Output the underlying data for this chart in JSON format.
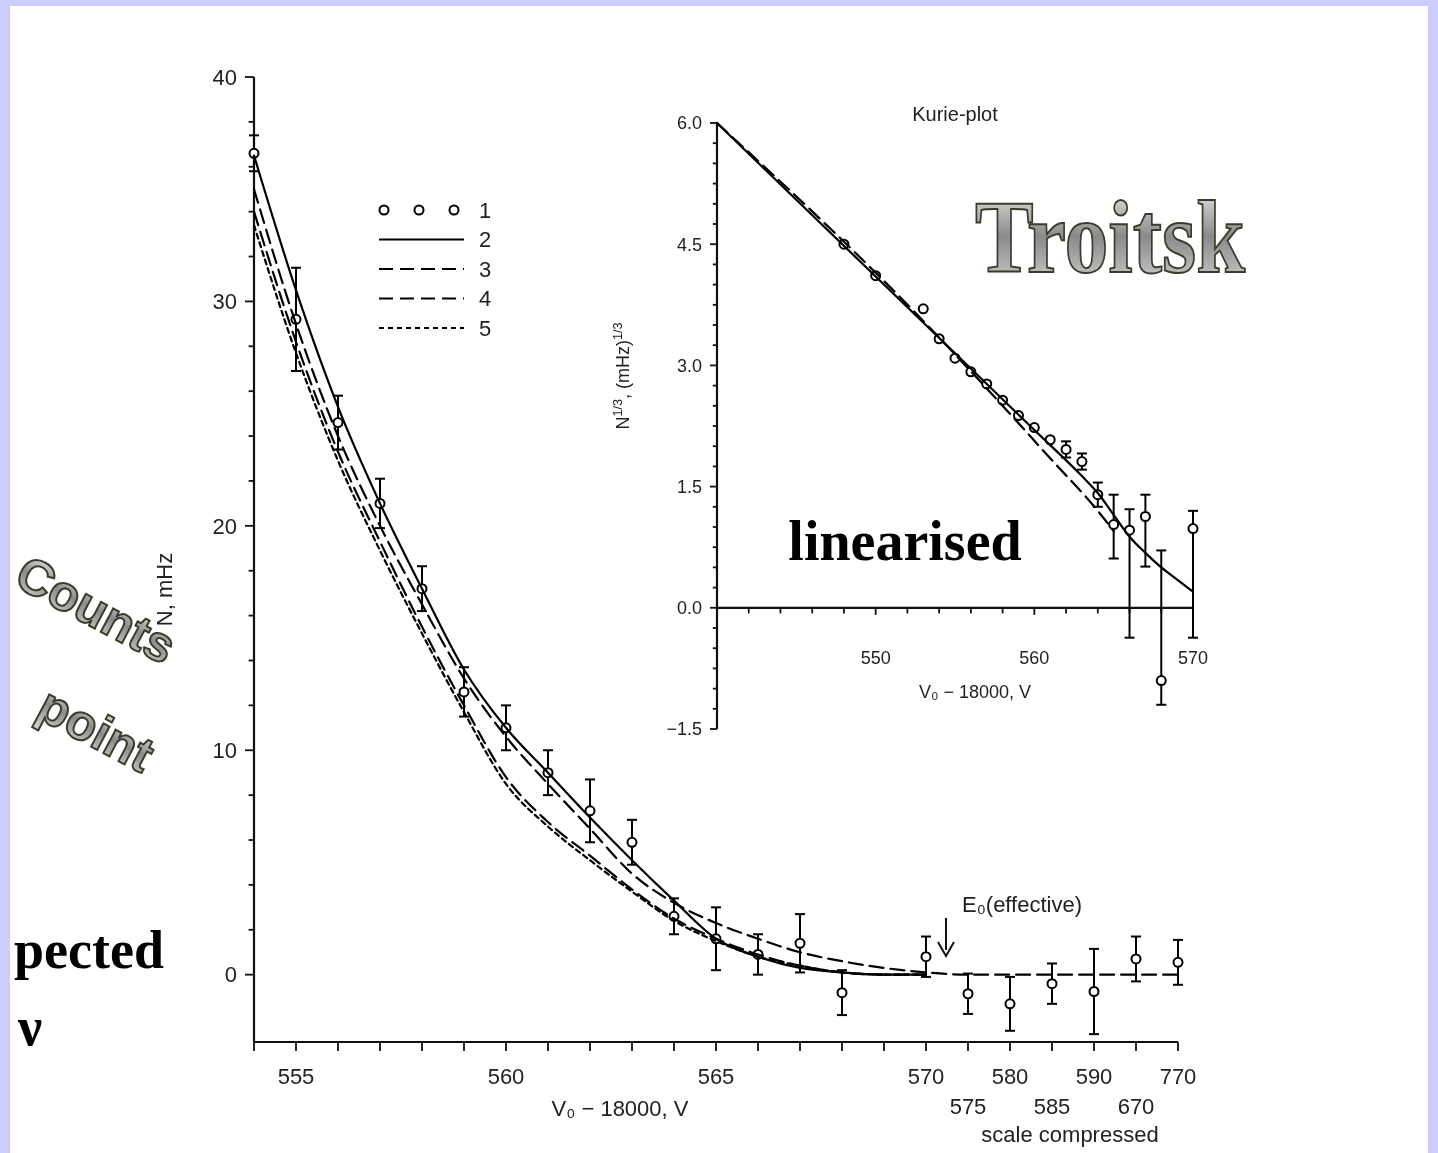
{
  "chart_data": [
    {
      "type": "line",
      "ylabel": "N, mHz",
      "xlabel": "V₀ − 18000, V",
      "categories": [
        null,
        "555",
        null,
        null,
        null,
        null,
        "560",
        null,
        null,
        null,
        null,
        "565",
        null,
        null,
        null,
        null,
        "570",
        "575",
        "580",
        "585",
        "590",
        "670",
        "770"
      ],
      "ylim": [
        -3,
        40
      ],
      "yticks": [
        0,
        {
          "value": 2,
          "label": null
        },
        {
          "value": 4,
          "label": null
        },
        {
          "value": 6,
          "label": null
        },
        {
          "value": 8,
          "label": null
        },
        10,
        {
          "value": 12,
          "label": null
        },
        {
          "value": 14,
          "label": null
        },
        {
          "value": 16,
          "label": null
        },
        {
          "value": 18,
          "label": null
        },
        20,
        {
          "value": 22,
          "label": null
        },
        {
          "value": 24,
          "label": null
        },
        {
          "value": 26,
          "label": null
        },
        {
          "value": 28,
          "label": null
        },
        30,
        {
          "value": 32,
          "label": null
        },
        {
          "value": 34,
          "label": null
        },
        {
          "value": 36,
          "label": null
        },
        {
          "value": 38,
          "label": null
        },
        40
      ],
      "legend": "top left",
      "series": [
        {
          "name": "1",
          "type": "scatter",
          "marker": "circle",
          "color": "#000000",
          "values": [
            36.6,
            29.2,
            24.6,
            21.0,
            17.2,
            12.6,
            11.0,
            9.0,
            7.3,
            5.9,
            2.6,
            1.6,
            0.9,
            1.4,
            -0.8,
            null,
            0.8,
            -0.85,
            -1.3,
            -0.4,
            -0.75,
            0.7,
            0.55
          ],
          "errors": [
            0.8,
            2.3,
            1.2,
            1.1,
            1.0,
            1.1,
            1.0,
            1.0,
            1.4,
            1.0,
            0.8,
            1.4,
            0.9,
            1.3,
            1.0,
            null,
            0.9,
            0.9,
            1.2,
            0.9,
            1.9,
            1.0,
            1.0
          ]
        },
        {
          "name": "2",
          "line_style": "solid",
          "color": "#000000",
          "values": [
            36.5,
            30.5,
            25.3,
            21.0,
            17.2,
            13.6,
            11.0,
            9.0,
            7.0,
            5.1,
            3.3,
            1.6,
            0.8,
            0.3,
            0.1,
            0.0,
            0.0,
            null,
            null,
            null,
            null,
            null,
            null
          ]
        },
        {
          "name": "3",
          "line_style": "dashed",
          "color": "#000000",
          "values": [
            35.0,
            29.0,
            24.0,
            20.0,
            16.5,
            13.2,
            10.6,
            8.5,
            6.5,
            4.5,
            3.2,
            2.3,
            1.6,
            1.0,
            0.6,
            0.3,
            0.1,
            0,
            0,
            0,
            0,
            0,
            0
          ]
        },
        {
          "name": "4",
          "line_style": "dashed",
          "color": "#000000",
          "values": [
            34.0,
            28.2,
            23.3,
            19.3,
            15.5,
            12.0,
            8.8,
            6.8,
            5.3,
            3.8,
            2.5,
            1.6,
            0.9,
            0.4,
            0.1,
            0.0,
            0.0,
            null,
            null,
            null,
            null,
            null,
            null
          ]
        },
        {
          "name": "5",
          "line_style": "dotted",
          "color": "#000000",
          "values": [
            33.4,
            27.7,
            22.9,
            18.9,
            15.2,
            11.7,
            8.5,
            6.6,
            5.1,
            3.7,
            2.4,
            1.5,
            0.8,
            0.4,
            0.1,
            0.0,
            0.0,
            null,
            null,
            null,
            null,
            null,
            null
          ]
        }
      ],
      "annotations": [
        "E₀(effective)",
        "scale compressed",
        "Counts",
        "point",
        "pected",
        "ν"
      ]
    },
    {
      "type": "line",
      "title": "Kurie-plot",
      "ylabel": "N$^{1/3}$, (mHz)$^{1/3}$",
      "xlabel": "V₀ − 18000, V",
      "xlim": [
        540,
        570
      ],
      "xticks": [
        {
          "value": 542,
          "label": null
        },
        {
          "value": 544,
          "label": null
        },
        {
          "value": 546,
          "label": null
        },
        {
          "value": 548,
          "label": null
        },
        550,
        {
          "value": 552,
          "label": null
        },
        {
          "value": 554,
          "label": null
        },
        {
          "value": 556,
          "label": null
        },
        {
          "value": 558,
          "label": null
        },
        560,
        {
          "value": 562,
          "label": null
        },
        {
          "value": 564,
          "label": null
        },
        {
          "value": 566,
          "label": null
        },
        {
          "value": 568,
          "label": null
        },
        570
      ],
      "ylim": [
        -1.5,
        6.0
      ],
      "yticks": [
        {
          "value": -1.5,
          "label": "−1.5"
        },
        {
          "value": -1.25,
          "label": null
        },
        {
          "value": -1.0,
          "label": null
        },
        {
          "value": -0.75,
          "label": null
        },
        {
          "value": -0.5,
          "label": null
        },
        {
          "value": -0.25,
          "label": null
        },
        {
          "value": 0,
          "label": "0.0"
        },
        {
          "value": 0.25,
          "label": null
        },
        {
          "value": 0.5,
          "label": null
        },
        {
          "value": 0.75,
          "label": null
        },
        {
          "value": 1.0,
          "label": null
        },
        {
          "value": 1.25,
          "label": null
        },
        {
          "value": 1.5,
          "label": "1.5"
        },
        {
          "value": 1.75,
          "label": null
        },
        {
          "value": 2.0,
          "label": null
        },
        {
          "value": 2.25,
          "label": null
        },
        {
          "value": 2.5,
          "label": null
        },
        {
          "value": 2.75,
          "label": null
        },
        {
          "value": 3.0,
          "label": "3.0"
        },
        {
          "value": 3.25,
          "label": null
        },
        {
          "value": 3.5,
          "label": null
        },
        {
          "value": 3.75,
          "label": null
        },
        {
          "value": 4.0,
          "label": null
        },
        {
          "value": 4.25,
          "label": null
        },
        {
          "value": 4.5,
          "label": "4.5"
        },
        {
          "value": 4.75,
          "label": null
        },
        {
          "value": 5.0,
          "label": null
        },
        {
          "value": 5.25,
          "label": null
        },
        {
          "value": 5.5,
          "label": null
        },
        {
          "value": 5.75,
          "label": null
        },
        {
          "value": 6.0,
          "label": "6.0"
        }
      ],
      "series": [
        {
          "type": "scatter",
          "marker": "circle",
          "color": "#000000",
          "x": [
            548,
            550,
            553,
            554,
            555,
            556,
            557,
            558,
            559,
            560,
            561,
            562,
            563,
            564,
            565,
            566,
            567,
            568,
            570
          ],
          "values": [
            4.5,
            4.11,
            3.7,
            3.33,
            3.09,
            2.92,
            2.77,
            2.57,
            2.38,
            2.23,
            2.08,
            1.96,
            1.81,
            1.4,
            1.03,
            0.96,
            1.13,
            -0.9,
            0.98
          ],
          "errors": [
            null,
            null,
            null,
            null,
            null,
            null,
            null,
            null,
            null,
            null,
            null,
            0.1,
            0.1,
            0.15,
            [
              0.61,
              1.4
            ],
            [
              -0.37,
              1.22
            ],
            [
              0.51,
              1.4
            ],
            [
              -1.2,
              0.71
            ],
            [
              -0.37,
              1.2
            ]
          ]
        },
        {
          "line_style": "solid",
          "color": "#000000",
          "x": [
            540,
            550,
            560,
            563,
            564,
            565,
            566,
            567,
            568,
            569,
            570
          ],
          "values": [
            6.0,
            4.1,
            2.2,
            1.63,
            1.42,
            1.15,
            0.88,
            0.68,
            0.5,
            0.35,
            0.2
          ]
        },
        {
          "line_style": "dashed",
          "color": "#000000",
          "x": [
            540,
            553,
            558,
            561,
            564,
            565
          ],
          "values": [
            6.0,
            3.55,
            2.5,
            1.85,
            1.2,
            0.95
          ]
        }
      ],
      "annotations": [
        "Troitsk",
        "linearised"
      ]
    }
  ]
}
